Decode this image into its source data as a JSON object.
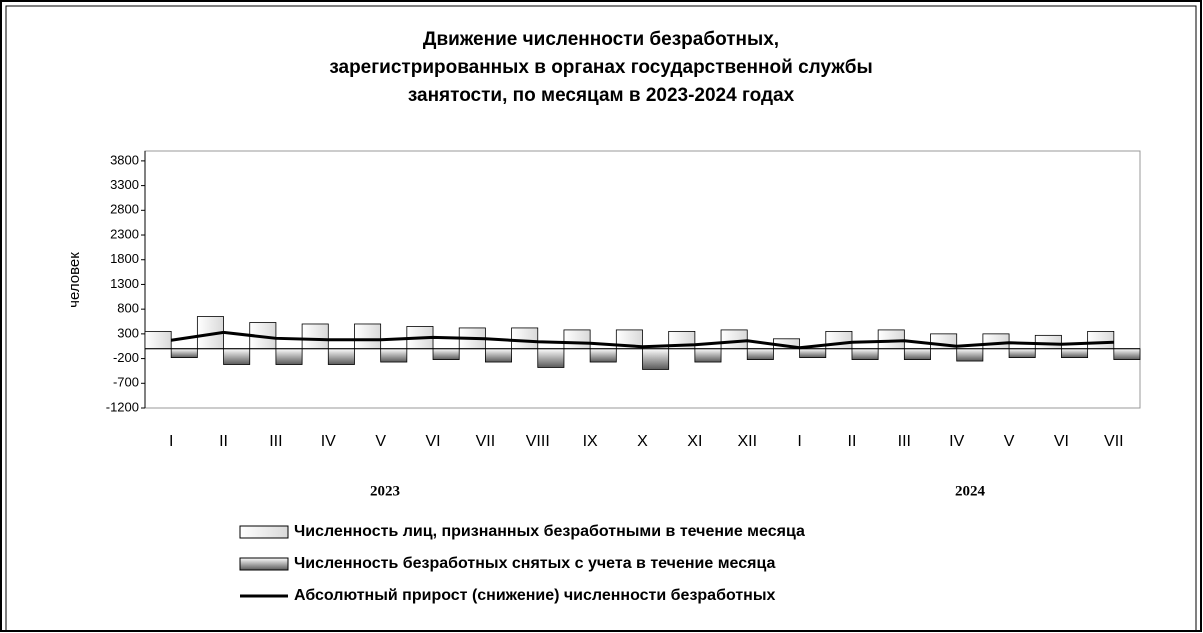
{
  "chart_data": {
    "type": "bar",
    "title": [
      "Движение численности безработных,",
      "зарегистрированных в органах государственной службы",
      "занятости, по месяцам в 2023-2024 годах"
    ],
    "y_label": "человек",
    "categories": [
      "I",
      "II",
      "III",
      "IV",
      "V",
      "VI",
      "VII",
      "VIII",
      "IX",
      "X",
      "XI",
      "XII",
      "I",
      "II",
      "III",
      "IV",
      "V",
      "VI",
      "VII"
    ],
    "annotations": [
      "2023",
      "2024"
    ],
    "series": [
      {
        "name": "Численность лиц, признанных безработными в течение месяца",
        "color": "#d9d9d9",
        "kind": "bar",
        "values": [
          350,
          650,
          530,
          500,
          500,
          450,
          420,
          420,
          380,
          380,
          350,
          380,
          200,
          350,
          380,
          300,
          300,
          270,
          350
        ]
      },
      {
        "name": "Численность безработных снятых с учета в течение месяца",
        "color": "#595959",
        "kind": "bar",
        "values": [
          -180,
          -320,
          -320,
          -320,
          -270,
          -220,
          -270,
          -380,
          -270,
          -420,
          -270,
          -220,
          -180,
          -220,
          -220,
          -250,
          -180,
          -180,
          -220
        ]
      },
      {
        "name": "Абсолютный прирост (снижение) численности безработных",
        "color": "#000000",
        "kind": "line",
        "values": [
          170,
          330,
          210,
          180,
          180,
          230,
          200,
          140,
          110,
          40,
          80,
          160,
          20,
          130,
          160,
          50,
          120,
          90,
          130
        ]
      }
    ],
    "ylim": [
      -1200,
      4000
    ],
    "yticks": [
      3800,
      3300,
      2800,
      2300,
      1800,
      1300,
      800,
      300,
      -200,
      -700,
      -1200
    ]
  }
}
